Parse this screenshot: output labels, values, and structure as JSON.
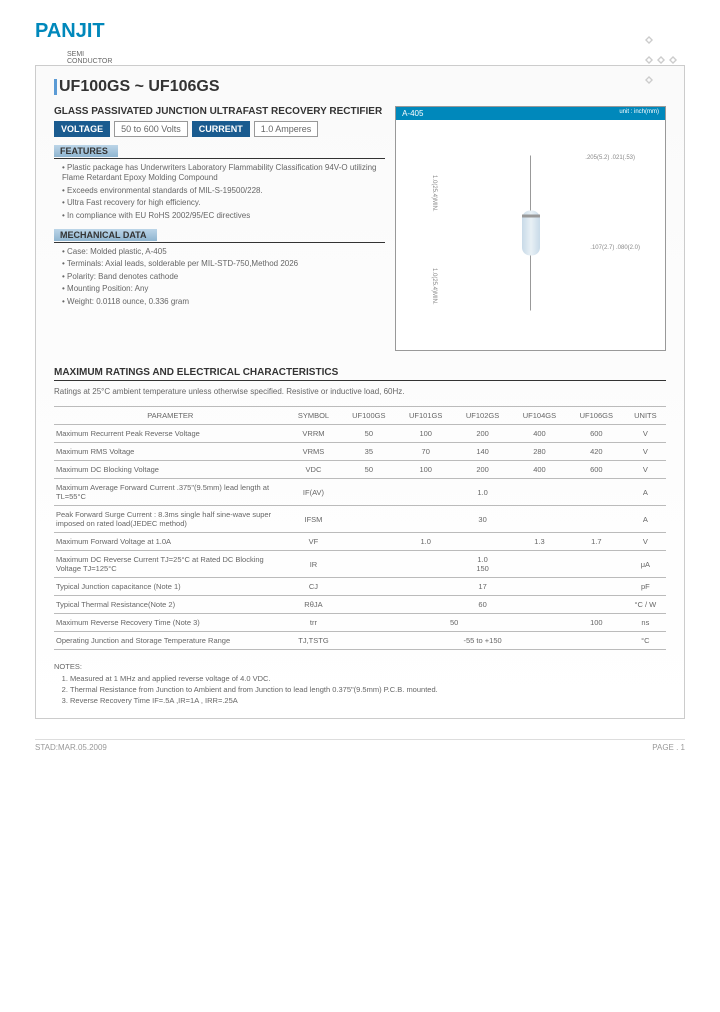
{
  "logo": {
    "brand": "PANJIT",
    "sub1": "SEMI",
    "sub2": "CONDUCTOR"
  },
  "title": "UF100GS ~ UF106GS",
  "subtitle": "GLASS PASSIVATED JUNCTION ULTRAFAST RECOVERY RECTIFIER",
  "specs": {
    "voltage_label": "VOLTAGE",
    "voltage_value": "50 to 600 Volts",
    "current_label": "CURRENT",
    "current_value": "1.0 Amperes"
  },
  "features": {
    "header": "FEATURES",
    "items": [
      "Plastic package has Underwriters Laboratory Flammability Classification 94V-O utilizing Flame Retardant Epoxy Molding Compound",
      "Exceeds environmental standards of MIL-S-19500/228.",
      "Ultra Fast recovery for high efficiency.",
      "In compliance with EU RoHS 2002/95/EC directives"
    ]
  },
  "mechanical": {
    "header": "MECHANICAL DATA",
    "items": [
      "Case: Molded plastic, A-405",
      "Terminals: Axial leads, solderable per MIL-STD-750,Method 2026",
      "Polarity: Band denotes cathode",
      "Mounting Position: Any",
      "Weight: 0.0118 ounce, 0.336 gram"
    ]
  },
  "diagram": {
    "label": "A-405",
    "unit": "unit : inch(mm)",
    "dim1": ".205(5.2) .021(.53)",
    "dim2": "1.0(25.4)MIN.",
    "dim3": "1.0(25.4)MIN.",
    "dim4": ".107(2.7) .080(2.0)"
  },
  "ratings": {
    "title": "MAXIMUM RATINGS AND ELECTRICAL CHARACTERISTICS",
    "note": "Ratings at 25°C ambient temperature unless otherwise specified. Resistive or inductive load, 60Hz."
  },
  "table": {
    "headers": [
      "PARAMETER",
      "SYMBOL",
      "UF100GS",
      "UF101GS",
      "UF102GS",
      "UF104GS",
      "UF106GS",
      "UNITS"
    ],
    "rows": [
      {
        "param": "Maximum Recurrent Peak Reverse Voltage",
        "symbol": "VRRM",
        "cells": [
          "50",
          "100",
          "200",
          "400",
          "600"
        ],
        "unit": "V"
      },
      {
        "param": "Maximum RMS Voltage",
        "symbol": "VRMS",
        "cells": [
          "35",
          "70",
          "140",
          "280",
          "420"
        ],
        "unit": "V"
      },
      {
        "param": "Maximum DC Blocking Voltage",
        "symbol": "VDC",
        "cells": [
          "50",
          "100",
          "200",
          "400",
          "600"
        ],
        "unit": "V"
      },
      {
        "param": "Maximum Average Forward Current .375\"(9.5mm) lead length at TL=55°C",
        "symbol": "IF(AV)",
        "span": "1.0",
        "unit": "A"
      },
      {
        "param": "Peak Forward Surge Current : 8.3ms single half sine-wave super imposed on rated load(JEDEC method)",
        "symbol": "IFSM",
        "span": "30",
        "unit": "A"
      },
      {
        "param": "Maximum Forward Voltage at 1.0A",
        "symbol": "VF",
        "cells3": [
          "1.0",
          "1.3",
          "1.7"
        ],
        "unit": "V"
      },
      {
        "param": "Maximum DC Reverse Current TJ=25°C at Rated DC Blocking Voltage TJ=125°C",
        "symbol": "IR",
        "span2": "1.0\n150",
        "unit": "μA"
      },
      {
        "param": "Typical Junction capacitance (Note 1)",
        "symbol": "CJ",
        "span": "17",
        "unit": "pF"
      },
      {
        "param": "Typical Thermal Resistance(Note 2)",
        "symbol": "RθJA",
        "span": "60",
        "unit": "°C / W"
      },
      {
        "param": "Maximum Reverse Recovery Time (Note 3)",
        "symbol": "trr",
        "cells2": [
          "50",
          "100"
        ],
        "unit": "ns"
      },
      {
        "param": "Operating Junction and Storage Temperature Range",
        "symbol": "TJ,TSTG",
        "span": "-55 to +150",
        "unit": "°C"
      }
    ]
  },
  "notes": {
    "title": "NOTES:",
    "items": [
      "Measured at 1 MHz and applied reverse voltage of 4.0 VDC.",
      "Thermal Resistance from Junction to Ambient and from Junction to lead length 0.375\"(9.5mm) P.C.B. mounted.",
      "Reverse Recovery Time IF=.5A ,IR=1A , IRR=.25A"
    ]
  },
  "footer": {
    "left": "STAD:MAR.05.2009",
    "right": "PAGE .  1"
  }
}
